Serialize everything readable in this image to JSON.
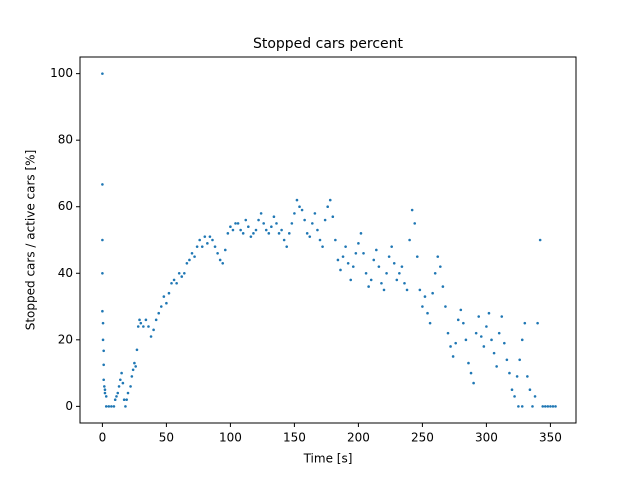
{
  "chart_data": {
    "type": "scatter",
    "title": "Stopped cars percent",
    "x_label": "Time [s]",
    "y_label": "Stopped cars / active cars [%]",
    "color": "#1f77b4",
    "xlim": [
      -17.5,
      370
    ],
    "ylim": [
      -5,
      105
    ],
    "xticks": [
      0,
      50,
      100,
      150,
      200,
      250,
      300,
      350
    ],
    "yticks": [
      0,
      20,
      40,
      60,
      80,
      100
    ],
    "x": [
      0,
      0,
      0,
      0,
      0,
      0.5,
      0.5,
      1,
      1,
      1,
      1.5,
      2,
      2,
      3,
      3,
      5,
      7,
      9,
      10,
      11,
      12,
      13,
      14,
      15,
      16,
      17,
      18,
      19,
      20,
      22,
      23,
      24,
      25,
      26,
      27,
      28,
      29,
      30,
      32,
      34,
      36,
      38,
      40,
      42,
      44,
      46,
      48,
      50,
      52,
      54,
      56,
      58,
      60,
      62,
      64,
      66,
      68,
      70,
      72,
      74,
      76,
      78,
      80,
      82,
      84,
      86,
      88,
      90,
      92,
      94,
      96,
      98,
      100,
      102,
      104,
      106,
      108,
      110,
      112,
      114,
      116,
      118,
      120,
      122,
      124,
      126,
      128,
      130,
      132,
      134,
      136,
      138,
      140,
      142,
      144,
      146,
      148,
      150,
      152,
      154,
      156,
      158,
      160,
      162,
      164,
      166,
      168,
      170,
      172,
      174,
      176,
      178,
      180,
      182,
      184,
      186,
      188,
      190,
      192,
      194,
      196,
      198,
      200,
      202,
      204,
      206,
      208,
      210,
      212,
      214,
      216,
      218,
      220,
      222,
      224,
      226,
      228,
      230,
      232,
      234,
      236,
      238,
      240,
      242,
      244,
      246,
      248,
      250,
      252,
      254,
      256,
      258,
      260,
      262,
      264,
      266,
      268,
      270,
      272,
      274,
      276,
      278,
      280,
      282,
      284,
      286,
      288,
      290,
      292,
      294,
      296,
      298,
      300,
      302,
      304,
      306,
      308,
      310,
      312,
      314,
      316,
      318,
      320,
      322,
      324,
      325,
      326,
      328,
      328,
      330,
      332,
      334,
      336,
      338,
      340,
      342,
      344,
      346,
      348,
      350,
      352,
      354
    ],
    "y": [
      100,
      66.7,
      50,
      40,
      28.6,
      25,
      20,
      16.7,
      12.5,
      8,
      6,
      5,
      4,
      3,
      0,
      0,
      0,
      0,
      2,
      3,
      4,
      6,
      8,
      10,
      7,
      2,
      0,
      2,
      4,
      6,
      9,
      11,
      13,
      12,
      17,
      24,
      26,
      25,
      24,
      26,
      24,
      21,
      23,
      26,
      28,
      30,
      33,
      31,
      34,
      37,
      38,
      37,
      40,
      39,
      40,
      43,
      44,
      46,
      45,
      48,
      50,
      48,
      51,
      49,
      51,
      50,
      48,
      46,
      44,
      43,
      47,
      52,
      54,
      53,
      55,
      55,
      53,
      52,
      56,
      54,
      51,
      52,
      53,
      56,
      58,
      55,
      53,
      52,
      54,
      57,
      55,
      52,
      53,
      50,
      48,
      52,
      55,
      58,
      62,
      60,
      59,
      56,
      52,
      51,
      55,
      58,
      53,
      50,
      48,
      56,
      60,
      62,
      57,
      50,
      44,
      41,
      45,
      48,
      43,
      38,
      42,
      46,
      49,
      52,
      46,
      40,
      36,
      38,
      44,
      47,
      42,
      37,
      35,
      40,
      45,
      48,
      43,
      38,
      40,
      42,
      37,
      35,
      50,
      59,
      55,
      45,
      35,
      30,
      33,
      28,
      25,
      34,
      40,
      45,
      42,
      36,
      30,
      22,
      18,
      15,
      19,
      26,
      29,
      25,
      20,
      13,
      10,
      7,
      22,
      27,
      21,
      18,
      24,
      28,
      20,
      16,
      12,
      22,
      27,
      19,
      14,
      10,
      5,
      3,
      9,
      0,
      14,
      0,
      20,
      25,
      9,
      5,
      0,
      3,
      25,
      50,
      0,
      0,
      0,
      0,
      0,
      0
    ]
  }
}
